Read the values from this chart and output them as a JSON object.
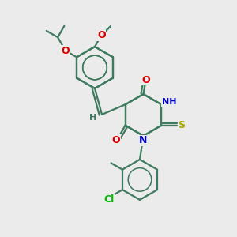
{
  "background_color": "#ebebeb",
  "bond_color": "#3d7a5e",
  "O_color": "#dd0000",
  "N_color": "#0000cc",
  "S_color": "#aaaa00",
  "Cl_color": "#00bb00",
  "figsize": [
    3.0,
    3.0
  ],
  "dpi": 100,
  "xlim": [
    0,
    10
  ],
  "ylim": [
    0,
    10
  ]
}
